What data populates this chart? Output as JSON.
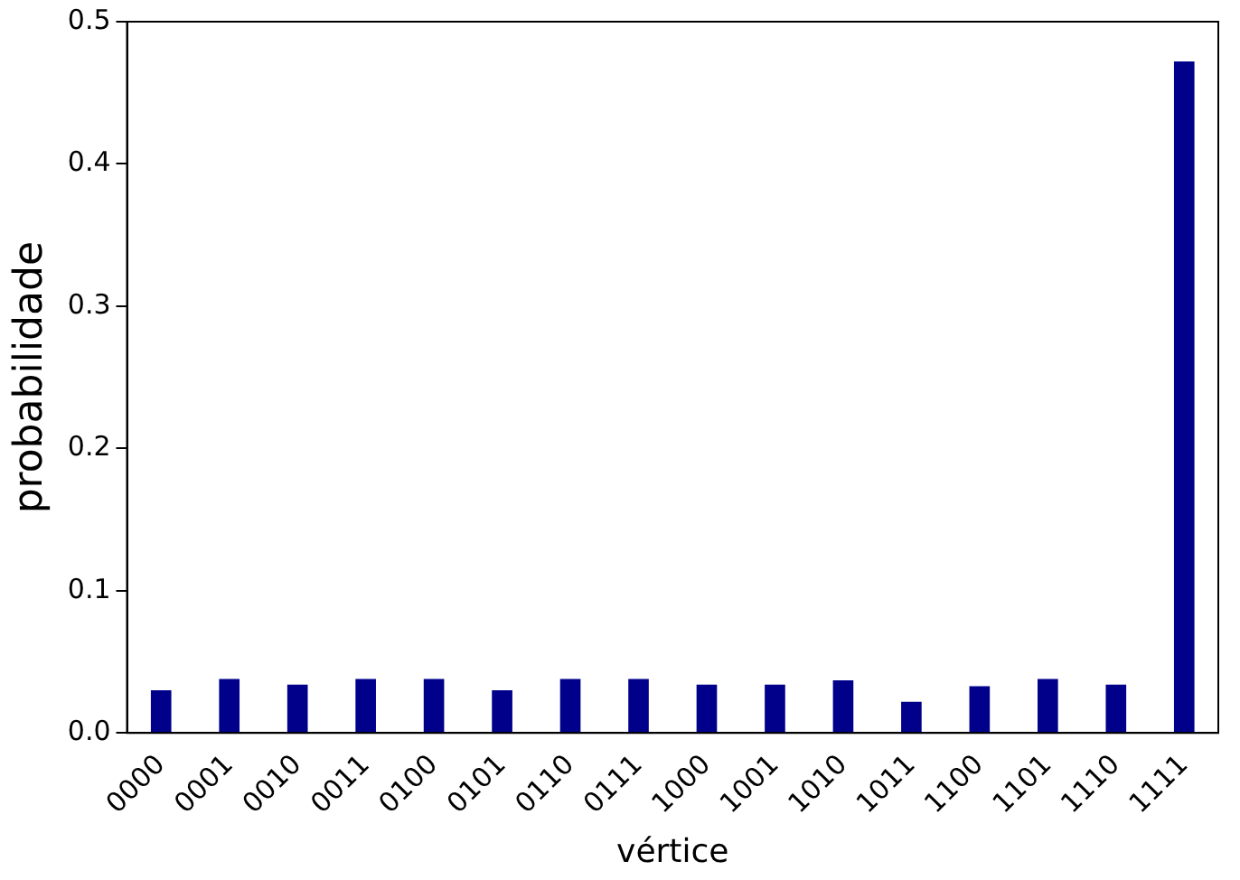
{
  "chart_data": {
    "type": "bar",
    "xlabel": "vértice",
    "ylabel": "probabilidade",
    "categories": [
      "0000",
      "0001",
      "0010",
      "0011",
      "0100",
      "0101",
      "0110",
      "0111",
      "1000",
      "1001",
      "1010",
      "1011",
      "1100",
      "1101",
      "1110",
      "1111"
    ],
    "values": [
      0.03,
      0.038,
      0.034,
      0.038,
      0.038,
      0.03,
      0.038,
      0.038,
      0.034,
      0.034,
      0.037,
      0.022,
      0.033,
      0.038,
      0.034,
      0.472
    ],
    "color": "#00008b",
    "ylim": [
      0,
      0.5
    ],
    "yticks": [
      {
        "value": 0,
        "label": "0.0"
      },
      0.1,
      0.2,
      0.3,
      0.4,
      0.5
    ],
    "grid": false,
    "legend": false
  }
}
